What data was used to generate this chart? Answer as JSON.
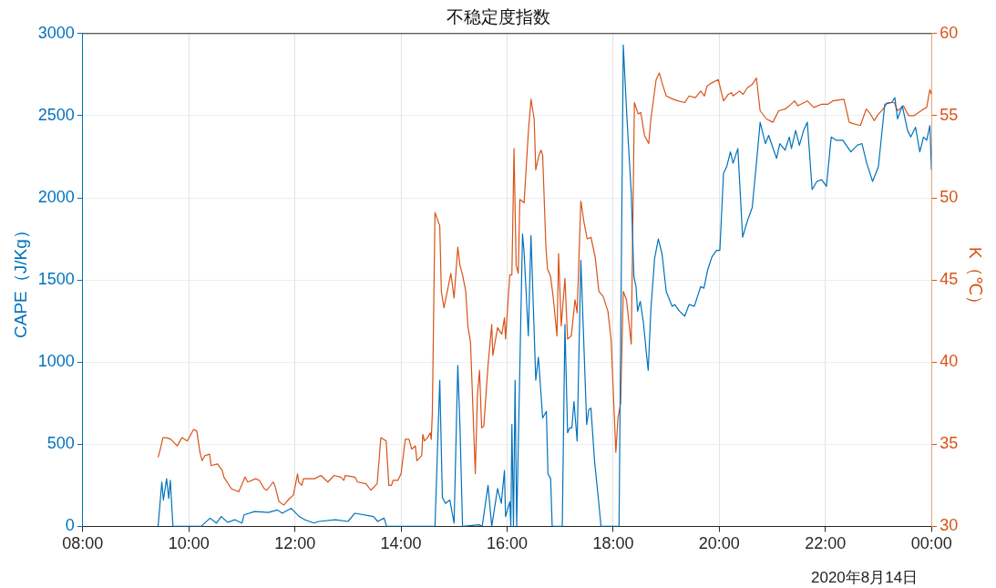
{
  "chart_data": {
    "type": "line",
    "title": "不稳定度指数",
    "ylabel": "CAPE（J/Kg）",
    "y2label": "K（℃）",
    "annotations": [
      "2020年8月14日"
    ],
    "xlim": [
      8,
      24
    ],
    "xticks": [
      {
        "value": 8,
        "label": "08:00"
      },
      {
        "value": 10,
        "label": "10:00"
      },
      {
        "value": 12,
        "label": "12:00"
      },
      {
        "value": 14,
        "label": "14:00"
      },
      {
        "value": 16,
        "label": "16:00"
      },
      {
        "value": 18,
        "label": "18:00"
      },
      {
        "value": 20,
        "label": "20:00"
      },
      {
        "value": 22,
        "label": "22:00"
      },
      {
        "value": 24,
        "label": "00:00"
      }
    ],
    "ylim": [
      0,
      3000
    ],
    "yticks": [
      0,
      500,
      1000,
      1500,
      2000,
      2500,
      3000
    ],
    "y2lim": [
      30,
      60
    ],
    "y2ticks": [
      30,
      35,
      40,
      45,
      50,
      55,
      60
    ],
    "grid": true,
    "legend": false,
    "marker": "none",
    "line_style": "solid",
    "series": [
      {
        "color": "#0072bd",
        "x": [
          9.42,
          9.49,
          9.52,
          9.58,
          9.62,
          9.65,
          9.7,
          10.23,
          10.4,
          10.52,
          10.61,
          10.73,
          10.87,
          11.0,
          11.04,
          11.24,
          11.5,
          11.67,
          11.76,
          11.93,
          12.08,
          12.19,
          12.36,
          12.45,
          12.76,
          13.0,
          13.13,
          13.48,
          13.56,
          13.68,
          13.73,
          14.64,
          14.73,
          14.78,
          14.84,
          14.92,
          15.0,
          15.07,
          15.11,
          15.16,
          15.47,
          15.53,
          15.64,
          15.71,
          15.82,
          15.89,
          15.95,
          15.97,
          16.05,
          16.07,
          16.09,
          16.12,
          16.15,
          16.18,
          16.29,
          16.32,
          16.4,
          16.45,
          16.54,
          16.59,
          16.67,
          16.74,
          16.77,
          16.82,
          16.85,
          17.04,
          17.09,
          17.14,
          17.18,
          17.22,
          17.26,
          17.32,
          17.39,
          17.44,
          17.5,
          17.54,
          17.58,
          17.65,
          17.72,
          17.77,
          18.11,
          18.19,
          18.26,
          18.34,
          18.39,
          18.43,
          18.46,
          18.51,
          18.57,
          18.63,
          18.66,
          18.71,
          18.78,
          18.85,
          18.92,
          19.0,
          19.11,
          19.16,
          19.25,
          19.35,
          19.43,
          19.53,
          19.65,
          19.71,
          19.78,
          19.86,
          19.95,
          20.01,
          20.08,
          20.14,
          20.21,
          20.26,
          20.35,
          20.44,
          20.53,
          20.62,
          20.7,
          20.77,
          20.87,
          20.93,
          21.08,
          21.14,
          21.24,
          21.32,
          21.36,
          21.44,
          21.51,
          21.59,
          21.66,
          21.75,
          21.84,
          21.93,
          22.02,
          22.11,
          22.21,
          22.33,
          22.48,
          22.6,
          22.69,
          22.78,
          22.89,
          23.0,
          23.12,
          23.25,
          23.31,
          23.36,
          23.45,
          23.55,
          23.61,
          23.7,
          23.78,
          23.85,
          23.91,
          23.97,
          24.0
        ],
        "values": [
          0,
          270,
          160,
          290,
          170,
          280,
          0,
          0,
          50,
          20,
          60,
          25,
          40,
          20,
          70,
          90,
          85,
          100,
          80,
          110,
          60,
          40,
          20,
          30,
          40,
          30,
          80,
          60,
          30,
          50,
          0,
          0,
          890,
          175,
          140,
          160,
          20,
          980,
          620,
          0,
          10,
          0,
          250,
          0,
          230,
          140,
          340,
          60,
          150,
          0,
          620,
          0,
          890,
          0,
          1780,
          1670,
          1160,
          1770,
          890,
          1030,
          660,
          700,
          320,
          290,
          0,
          0,
          1230,
          570,
          600,
          600,
          760,
          520,
          1620,
          1170,
          620,
          710,
          720,
          390,
          170,
          0,
          0,
          2930,
          2480,
          2030,
          1520,
          1460,
          1310,
          1370,
          1240,
          1040,
          950,
          1320,
          1630,
          1750,
          1660,
          1430,
          1340,
          1350,
          1310,
          1280,
          1350,
          1340,
          1460,
          1450,
          1560,
          1640,
          1680,
          1680,
          2150,
          2190,
          2280,
          2210,
          2300,
          1760,
          1860,
          1940,
          2210,
          2460,
          2330,
          2380,
          2240,
          2330,
          2290,
          2370,
          2300,
          2410,
          2320,
          2410,
          2460,
          2050,
          2100,
          2110,
          2070,
          2370,
          2350,
          2350,
          2280,
          2320,
          2330,
          2210,
          2100,
          2190,
          2570,
          2580,
          2610,
          2480,
          2560,
          2410,
          2370,
          2430,
          2280,
          2370,
          2350,
          2440,
          2170
        ]
      },
      {
        "color": "#d95319",
        "axis": "y2",
        "x": [
          9.42,
          9.47,
          9.51,
          9.58,
          9.66,
          9.78,
          9.87,
          9.97,
          10.09,
          10.15,
          10.21,
          10.25,
          10.3,
          10.39,
          10.42,
          10.54,
          10.63,
          10.66,
          10.8,
          10.94,
          11.06,
          11.11,
          11.26,
          11.33,
          11.42,
          11.47,
          11.59,
          11.62,
          11.7,
          11.79,
          11.9,
          11.97,
          12.05,
          12.07,
          12.13,
          12.16,
          12.37,
          12.49,
          12.62,
          12.74,
          12.86,
          12.92,
          12.95,
          13.13,
          13.18,
          13.34,
          13.43,
          13.55,
          13.62,
          13.72,
          13.77,
          13.82,
          13.85,
          13.94,
          14.0,
          14.08,
          14.15,
          14.2,
          14.27,
          14.3,
          14.39,
          14.41,
          14.44,
          14.5,
          14.55,
          14.57,
          14.59,
          14.64,
          14.73,
          14.76,
          14.81,
          14.94,
          15.0,
          15.07,
          15.11,
          15.16,
          15.22,
          15.26,
          15.31,
          15.4,
          15.44,
          15.48,
          15.52,
          15.56,
          15.64,
          15.71,
          15.73,
          15.82,
          15.9,
          15.95,
          15.97,
          16.05,
          16.09,
          16.13,
          16.17,
          16.21,
          16.24,
          16.32,
          16.4,
          16.45,
          16.51,
          16.54,
          16.6,
          16.64,
          16.67,
          16.73,
          16.76,
          16.82,
          16.87,
          16.94,
          16.97,
          17.02,
          17.09,
          17.14,
          17.21,
          17.28,
          17.32,
          17.39,
          17.45,
          17.51,
          17.58,
          17.66,
          17.73,
          17.81,
          17.9,
          17.96,
          18.05,
          18.09,
          18.14,
          18.19,
          18.25,
          18.34,
          18.4,
          18.47,
          18.52,
          18.59,
          18.67,
          18.71,
          18.81,
          18.87,
          18.93,
          19.0,
          19.13,
          19.22,
          19.35,
          19.43,
          19.55,
          19.65,
          19.72,
          19.77,
          19.86,
          19.98,
          20.08,
          20.17,
          20.23,
          20.26,
          20.38,
          20.45,
          20.53,
          20.62,
          20.7,
          20.77,
          20.89,
          21.01,
          21.12,
          21.24,
          21.32,
          21.42,
          21.48,
          21.66,
          21.78,
          21.93,
          22.05,
          22.14,
          22.35,
          22.45,
          22.54,
          22.66,
          22.77,
          22.83,
          22.92,
          23.0,
          23.09,
          23.17,
          23.3,
          23.36,
          23.47,
          23.57,
          23.67,
          23.76,
          23.85,
          23.91,
          23.97,
          24.0
        ],
        "values": [
          34.2,
          34.8,
          35.4,
          35.4,
          35.3,
          34.9,
          35.4,
          35.2,
          35.9,
          35.8,
          34.5,
          34.0,
          34.3,
          34.4,
          33.7,
          33.8,
          33.4,
          33.0,
          32.3,
          32.1,
          33.0,
          32.7,
          32.9,
          32.8,
          32.3,
          32.2,
          32.7,
          32.5,
          31.5,
          31.3,
          31.7,
          31.9,
          33.2,
          32.7,
          32.5,
          32.9,
          32.9,
          33.1,
          32.7,
          33.1,
          33.0,
          32.8,
          33.1,
          33.0,
          32.7,
          32.6,
          32.2,
          32.6,
          35.4,
          35.2,
          32.5,
          32.5,
          32.8,
          32.8,
          33.2,
          35.3,
          35.3,
          34.7,
          34.9,
          34.0,
          34.3,
          35.6,
          35.2,
          35.4,
          35.7,
          35.3,
          36.9,
          49.1,
          48.3,
          44.3,
          43.3,
          45.4,
          43.9,
          47.0,
          45.9,
          45.3,
          44.3,
          42.2,
          41.2,
          33.2,
          38.0,
          39.5,
          36.0,
          36.1,
          39.8,
          42.3,
          40.4,
          42.1,
          41.7,
          42.7,
          41.4,
          45.3,
          45.3,
          53.0,
          45.9,
          45.4,
          49.9,
          49.7,
          54.0,
          56.0,
          54.8,
          51.7,
          52.6,
          52.9,
          52.6,
          47.1,
          45.7,
          45.2,
          43.9,
          41.6,
          46.6,
          42.2,
          45.1,
          41.4,
          41.6,
          43.8,
          43.0,
          49.8,
          48.5,
          47.5,
          47.6,
          46.4,
          44.3,
          44.0,
          43.1,
          41.4,
          34.5,
          36.6,
          37.5,
          44.3,
          43.8,
          41.1,
          55.8,
          55.1,
          55.2,
          53.8,
          53.3,
          54.8,
          57.2,
          57.6,
          56.9,
          56.2,
          56.0,
          55.9,
          55.8,
          56.2,
          56.1,
          56.5,
          56.2,
          56.8,
          57.0,
          57.2,
          55.9,
          56.3,
          56.4,
          56.2,
          56.5,
          56.3,
          56.7,
          56.9,
          57.3,
          55.3,
          54.8,
          54.6,
          55.3,
          55.4,
          55.6,
          55.9,
          55.6,
          55.9,
          55.5,
          55.7,
          55.7,
          55.9,
          56.0,
          54.6,
          54.5,
          54.4,
          55.4,
          55.2,
          54.7,
          55.1,
          55.4,
          55.8,
          55.8,
          55.3,
          55.6,
          55.0,
          55.0,
          55.2,
          55.4,
          55.5,
          56.6,
          56.3
        ]
      }
    ]
  }
}
